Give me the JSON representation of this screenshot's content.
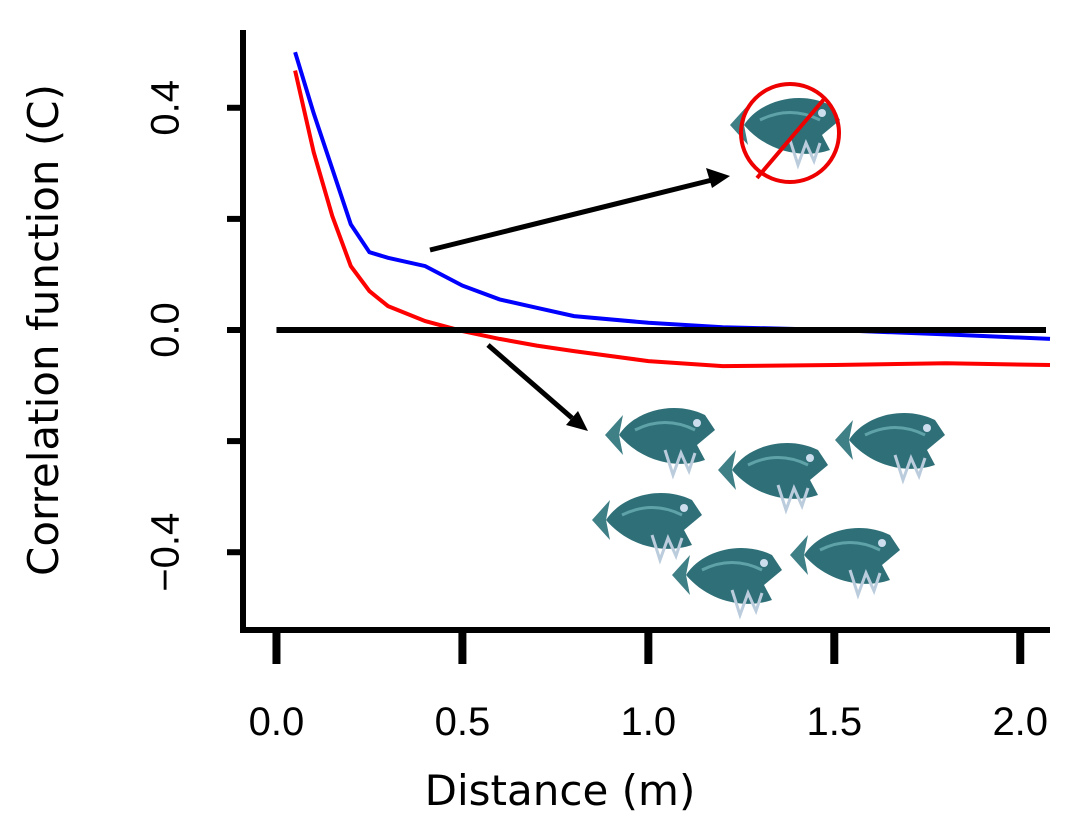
{
  "chart_data": {
    "type": "line",
    "y_label": "Correlation function (C)",
    "x_label": "Distance (m)",
    "x": [
      0.05,
      0.1,
      0.15,
      0.2,
      0.25,
      0.3,
      0.4,
      0.5,
      0.6,
      0.7,
      0.8,
      1.0,
      1.2,
      1.5,
      1.8,
      2.08
    ],
    "series": [
      {
        "color": "#0000ff",
        "values": [
          0.5,
          0.39,
          0.29,
          0.19,
          0.14,
          0.13,
          0.115,
          0.08,
          0.055,
          0.04,
          0.025,
          0.013,
          0.005,
          0.0,
          -0.008,
          -0.016
        ]
      },
      {
        "color": "#ff0000",
        "values": [
          0.467,
          0.32,
          0.205,
          0.115,
          0.07,
          0.043,
          0.016,
          -0.002,
          -0.016,
          -0.028,
          -0.038,
          -0.056,
          -0.065,
          -0.063,
          -0.06,
          -0.063
        ]
      }
    ],
    "hline": 0,
    "xlim": [
      -0.09,
      2.08
    ],
    "ylim": [
      -0.54,
      0.54
    ],
    "xticks": [
      {
        "value": 0,
        "label": "0.0"
      },
      0.5,
      {
        "value": 1,
        "label": "1.0"
      },
      1.5,
      {
        "value": 2,
        "label": "2.0"
      }
    ],
    "yticks": [
      {
        "value": -0.4,
        "label": "−0.4"
      },
      {
        "value": -0.2,
        "label": null
      },
      {
        "value": 0,
        "label": "0.0"
      },
      {
        "value": 0.2,
        "label": null
      },
      0.4
    ]
  }
}
